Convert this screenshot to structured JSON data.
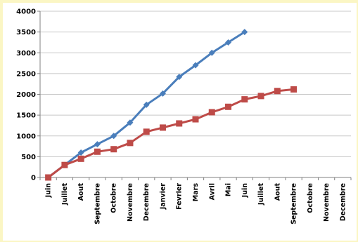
{
  "chart_data": {
    "type": "line",
    "title": "",
    "xlabel": "",
    "ylabel": "",
    "ylim": [
      0,
      4000
    ],
    "yticks": [
      0,
      500,
      1000,
      1500,
      2000,
      2500,
      3000,
      3500,
      4000
    ],
    "grid": true,
    "legend": "none",
    "categories": [
      "Juin",
      "Juillet",
      "Aout",
      "Septembre",
      "Octobre",
      "Novembre",
      "Decembre",
      "Janvier",
      "Fevrier",
      "Mars",
      "Avril",
      "Mai",
      "Juin",
      "Juillet",
      "Aout",
      "Septembre",
      "Octobre",
      "Novembre",
      "Decembre"
    ],
    "series": [
      {
        "color": "#4a7ebb",
        "marker": "diamond",
        "values": [
          0,
          300,
          600,
          800,
          1000,
          1320,
          1750,
          2020,
          2420,
          2700,
          3000,
          3250,
          3500,
          null,
          null,
          null,
          null,
          null,
          null
        ]
      },
      {
        "color": "#be4b48",
        "marker": "square",
        "values": [
          0,
          300,
          450,
          620,
          680,
          830,
          1100,
          1200,
          1300,
          1400,
          1570,
          1700,
          1880,
          1960,
          2080,
          2120,
          null,
          null,
          null
        ]
      }
    ]
  }
}
